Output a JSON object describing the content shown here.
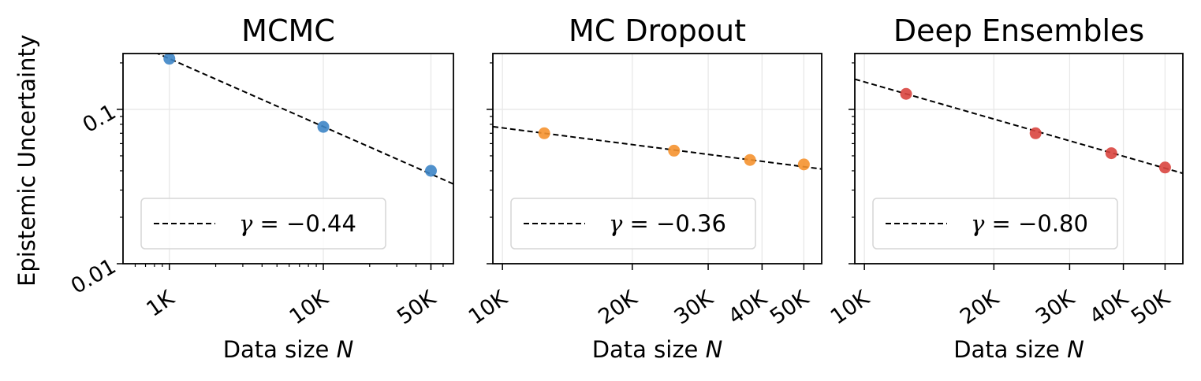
{
  "figure": {
    "ylabel": "Epistemic Uncertainty"
  },
  "chart_data": [
    {
      "type": "scatter",
      "title": "MCMC",
      "xlabel": "Data size",
      "xlabel_var": "N",
      "ylabel": "Epistemic Uncertainty",
      "xscale": "log",
      "yscale": "log",
      "xlim": [
        500,
        70000
      ],
      "ylim": [
        0.01,
        0.23
      ],
      "xticks": [
        {
          "value": 1000,
          "label": "1K"
        },
        {
          "value": 10000,
          "label": "10K"
        },
        {
          "value": 50000,
          "label": "50K"
        }
      ],
      "yticks": [
        {
          "value": 0.01,
          "label": "0.01"
        },
        {
          "value": 0.1,
          "label": "0.1"
        }
      ],
      "grid": true,
      "color": "#3d85c6",
      "points": [
        {
          "x": 1000,
          "y": 0.213
        },
        {
          "x": 10000,
          "y": 0.077
        },
        {
          "x": 50000,
          "y": 0.04
        }
      ],
      "fit": {
        "gamma": -0.44,
        "x_from": 500,
        "x_to": 70000,
        "anchor_x": 1000,
        "anchor_y": 0.213
      },
      "legend": {
        "label_prefix": "γ = ",
        "gamma_label": "−0.44",
        "location": "lower left"
      }
    },
    {
      "type": "scatter",
      "title": "MC Dropout",
      "xlabel": "Data size",
      "xlabel_var": "N",
      "xscale": "log",
      "yscale": "log",
      "xlim": [
        9500,
        55000
      ],
      "ylim": [
        0.01,
        0.23
      ],
      "xticks": [
        {
          "value": 10000,
          "label": "10K"
        },
        {
          "value": 20000,
          "label": "20K"
        },
        {
          "value": 30000,
          "label": "30K"
        },
        {
          "value": 40000,
          "label": "40K"
        },
        {
          "value": 50000,
          "label": "50K"
        }
      ],
      "grid": true,
      "color": "#f5922f",
      "points": [
        {
          "x": 12500,
          "y": 0.07
        },
        {
          "x": 25000,
          "y": 0.054
        },
        {
          "x": 37500,
          "y": 0.047
        },
        {
          "x": 50000,
          "y": 0.044
        }
      ],
      "fit": {
        "gamma": -0.36,
        "x_from": 9500,
        "x_to": 55000,
        "anchor_x": 12500,
        "anchor_y": 0.07
      },
      "legend": {
        "label_prefix": "γ = ",
        "gamma_label": "−0.36",
        "location": "lower left"
      }
    },
    {
      "type": "scatter",
      "title": "Deep Ensembles",
      "xlabel": "Data size",
      "xlabel_var": "N",
      "xscale": "log",
      "yscale": "log",
      "xlim": [
        9500,
        55000
      ],
      "ylim": [
        0.01,
        0.23
      ],
      "xticks": [
        {
          "value": 10000,
          "label": "10K"
        },
        {
          "value": 20000,
          "label": "20K"
        },
        {
          "value": 30000,
          "label": "30K"
        },
        {
          "value": 40000,
          "label": "40K"
        },
        {
          "value": 50000,
          "label": "50K"
        }
      ],
      "grid": true,
      "color": "#d9453f",
      "points": [
        {
          "x": 12500,
          "y": 0.126
        },
        {
          "x": 25000,
          "y": 0.07
        },
        {
          "x": 37500,
          "y": 0.052
        },
        {
          "x": 50000,
          "y": 0.042
        }
      ],
      "fit": {
        "gamma": -0.8,
        "x_from": 9500,
        "x_to": 55000,
        "anchor_x": 12500,
        "anchor_y": 0.126
      },
      "legend": {
        "label_prefix": "γ = ",
        "gamma_label": "−0.80",
        "location": "lower left"
      }
    }
  ]
}
